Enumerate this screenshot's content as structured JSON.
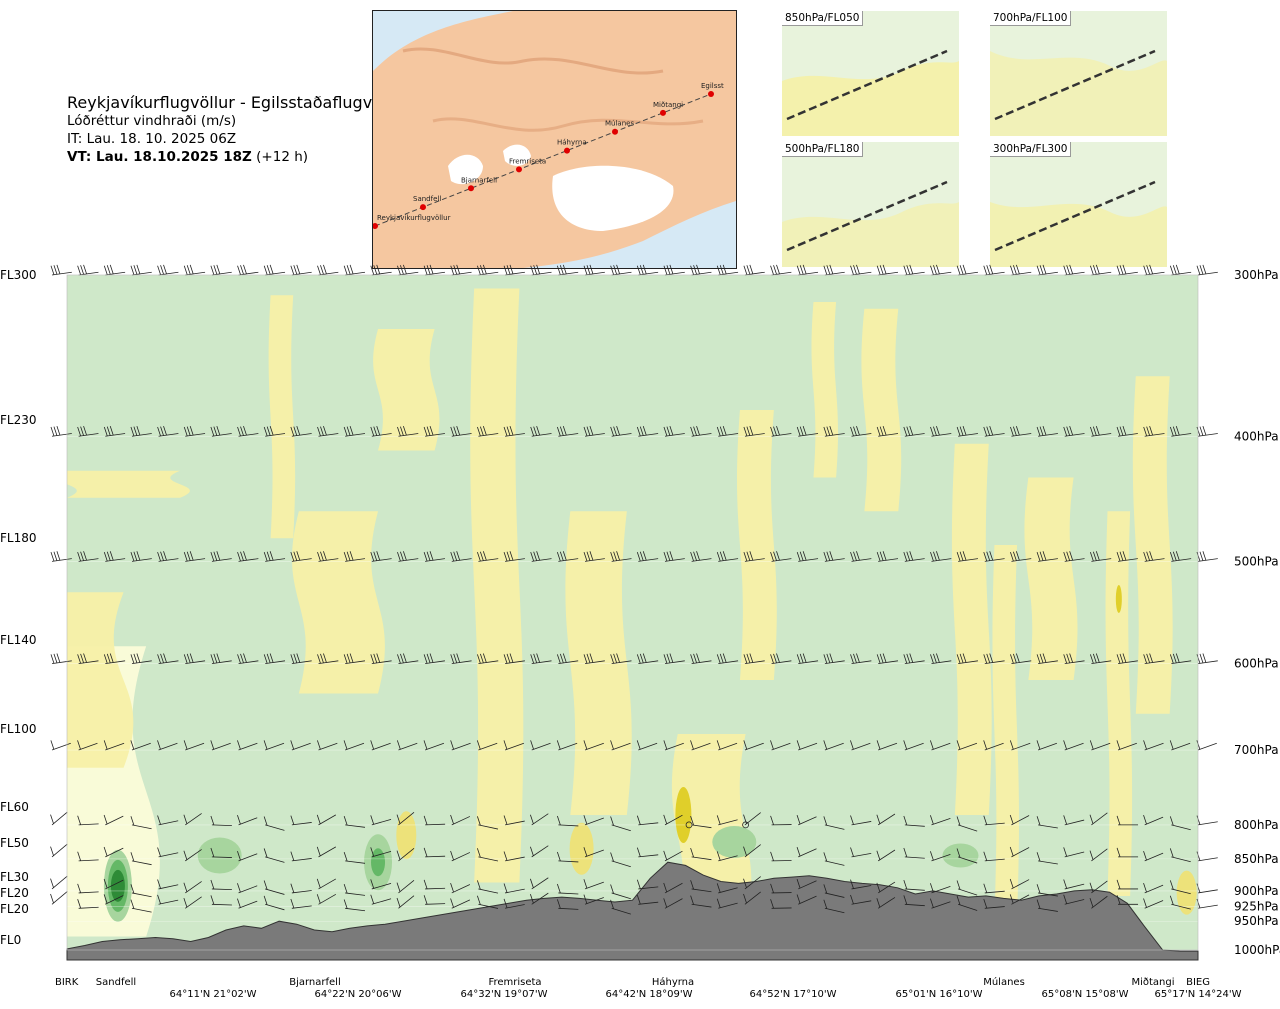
{
  "header": {
    "title": "Reykjavíkurflugvöllur - Egilsstaðaflugvöllur",
    "subtitle": "Lóðréttur vindhraði (m/s)",
    "issue_time": "IT: Lau. 18. 10. 2025 06Z",
    "valid_time_bold": "VT: Lau. 18.10.2025 18Z",
    "valid_time_lead": "(+12 h)"
  },
  "route_map": {
    "waypoints": [
      "Reykjavíkurflugvöllur",
      "Sandfell",
      "Bjarnarfell",
      "Fremriseta",
      "Háhyrna",
      "Múlanes",
      "Miðtangi",
      "Egilsst"
    ]
  },
  "mini_maps": [
    {
      "label": "850hPa/FL050"
    },
    {
      "label": "700hPa/FL100"
    },
    {
      "label": "500hPa/FL180"
    },
    {
      "label": "300hPa/FL300"
    }
  ],
  "colors": {
    "upward_light": "#f7f0a8",
    "upward_mid": "#ede27a",
    "upward_strong": "#e0cf2a",
    "neutral": "#fbfcd9",
    "downward_light": "#cfe8c9",
    "downward_mid": "#a7d59e",
    "downward_strong": "#64b866",
    "downward_core": "#2e8b37",
    "terrain": "#7a7a7a"
  },
  "chart_data": {
    "type": "heatmap",
    "title": "Lóðréttur vindhraði (m/s)",
    "left_axis_labels": [
      "FL300",
      "FL230",
      "FL180",
      "FL140",
      "FL100",
      "FL60",
      "FL50",
      "FL30",
      "FL20",
      "FL20",
      "FL0"
    ],
    "right_axis_labels": [
      "300hPa",
      "400hPa",
      "500hPa",
      "600hPa",
      "700hPa",
      "800hPa",
      "850hPa",
      "900hPa",
      "925hPa",
      "950hPa",
      "1000hPa"
    ],
    "pressure_levels_hpa": [
      300,
      400,
      500,
      600,
      700,
      800,
      850,
      900,
      925,
      950,
      1000
    ],
    "waypoints": [
      "BIRK",
      "Sandfell",
      "Bjarnarfell",
      "Fremriseta",
      "Háhyrna",
      "Múlanes",
      "Miðtangi",
      "BIEG"
    ],
    "coordinates": [
      "64°11'N 21°02'W",
      "64°22'N 20°06'W",
      "64°32'N 19°07'W",
      "64°42'N 18°09'W",
      "64°52'N 17°10'W",
      "65°01'N 16°10'W",
      "65°08'N 15°08'W",
      "65°17'N 14°24'W"
    ],
    "terrain_profile_hpa": [
      998,
      992,
      985,
      982,
      980,
      978,
      980,
      985,
      978,
      965,
      958,
      962,
      950,
      955,
      965,
      968,
      962,
      958,
      955,
      950,
      945,
      940,
      935,
      930,
      925,
      920,
      915,
      912,
      910,
      912,
      915,
      918,
      915,
      880,
      855,
      860,
      875,
      885,
      888,
      885,
      880,
      878,
      876,
      880,
      885,
      888,
      890,
      895,
      905,
      900,
      905,
      910,
      908,
      912,
      915,
      908,
      905,
      900,
      898,
      902,
      920,
      960,
      1000,
      1002,
      1002
    ]
  }
}
